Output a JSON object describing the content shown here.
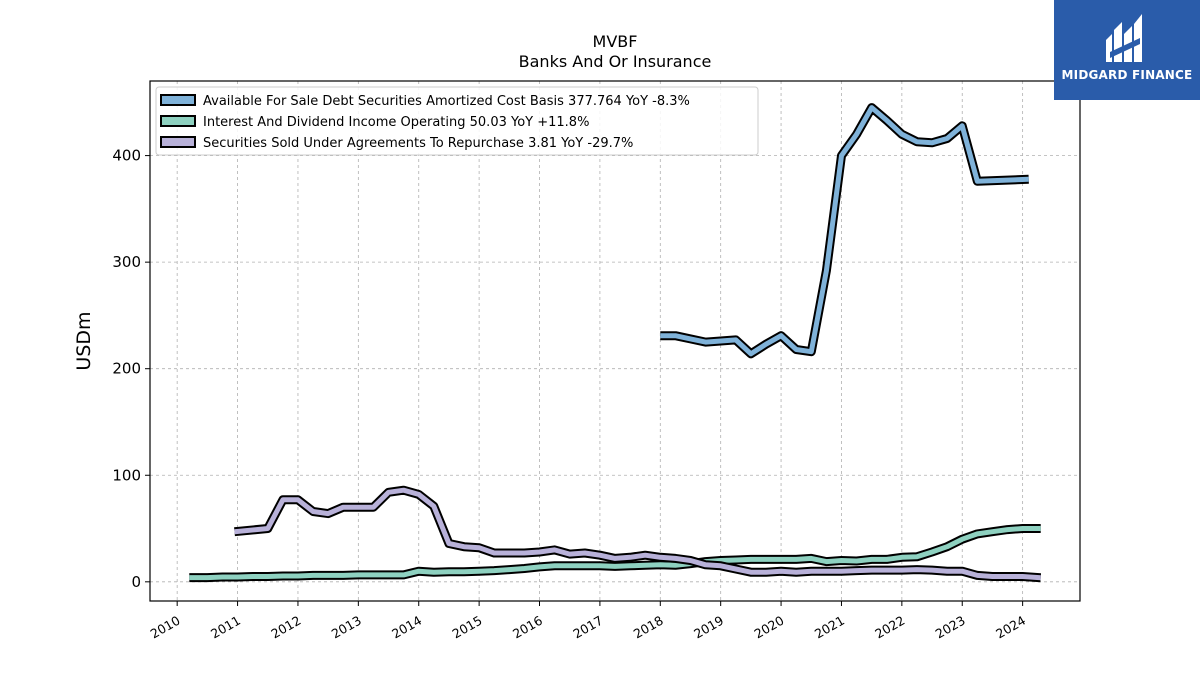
{
  "brand": {
    "name": "MIDGARD FINANCE",
    "color": "#2a5caa"
  },
  "chart_data": {
    "type": "line",
    "title": "MVBF",
    "subtitle": "Banks And Or Insurance",
    "ylabel": "USDm",
    "xlabel": "",
    "ylim": [
      -18,
      470
    ],
    "xlim": [
      2009.55,
      2024.95
    ],
    "yticks": [
      0,
      100,
      200,
      300,
      400
    ],
    "xticks": [
      2010,
      2011,
      2012,
      2013,
      2014,
      2015,
      2016,
      2017,
      2018,
      2019,
      2020,
      2021,
      2022,
      2023,
      2024
    ],
    "grid": true,
    "legend_position": "top-left",
    "series": [
      {
        "name": "Available For Sale Debt Securities Amortized Cost Basis  377.764 YoY -8.3%",
        "color": "#7fb2d9",
        "x": [
          2018.0,
          2018.25,
          2018.5,
          2018.75,
          2019.0,
          2019.25,
          2019.5,
          2019.75,
          2020.0,
          2020.25,
          2020.5,
          2020.75,
          2021.0,
          2021.25,
          2021.5,
          2021.75,
          2022.0,
          2022.25,
          2022.5,
          2022.75,
          2023.0,
          2023.25,
          2024.1
        ],
        "values": [
          231,
          231,
          228,
          225,
          226,
          227,
          214,
          223,
          231,
          218,
          216,
          292,
          400,
          420,
          445,
          433,
          420,
          413,
          412,
          416,
          428,
          376,
          377.764
        ]
      },
      {
        "name": "Interest And Dividend Income Operating  50.03 YoY +11.8%",
        "color": "#8ed1c0",
        "x": [
          2010.2,
          2010.5,
          2010.75,
          2011.0,
          2011.25,
          2011.5,
          2011.75,
          2012.0,
          2012.25,
          2012.5,
          2012.75,
          2013.0,
          2013.25,
          2013.5,
          2013.75,
          2014.0,
          2014.25,
          2014.5,
          2014.75,
          2015.0,
          2015.25,
          2015.5,
          2015.75,
          2016.0,
          2016.25,
          2016.5,
          2016.75,
          2017.0,
          2017.25,
          2017.5,
          2017.75,
          2018.0,
          2018.25,
          2018.5,
          2018.75,
          2019.0,
          2019.25,
          2019.5,
          2019.75,
          2020.0,
          2020.25,
          2020.5,
          2020.75,
          2021.0,
          2021.25,
          2021.5,
          2021.75,
          2022.0,
          2022.25,
          2022.5,
          2022.75,
          2023.0,
          2023.25,
          2023.5,
          2023.75,
          2024.0,
          2024.3
        ],
        "values": [
          4,
          4,
          4.5,
          4.5,
          5,
          5,
          5.5,
          5.5,
          6,
          6,
          6,
          6.5,
          6.5,
          6.5,
          6.5,
          10,
          9,
          9.5,
          9.5,
          10,
          10.5,
          11.5,
          12.5,
          14,
          15,
          15,
          15,
          15,
          14.5,
          15,
          15.5,
          16,
          15.5,
          17,
          19,
          20,
          20.5,
          21,
          21,
          21,
          21,
          22,
          19,
          20,
          19.5,
          21,
          21,
          23,
          23.5,
          28,
          33,
          40,
          45,
          47,
          49,
          50,
          50.03
        ]
      },
      {
        "name": "Securities Sold Under Agreements To Repurchase  3.81 YoY -29.7%",
        "color": "#b8b1d9",
        "x": [
          2010.95,
          2011.5,
          2011.75,
          2012.0,
          2012.25,
          2012.5,
          2012.75,
          2013.0,
          2013.25,
          2013.5,
          2013.75,
          2014.0,
          2014.25,
          2014.5,
          2014.75,
          2015.0,
          2015.25,
          2015.5,
          2015.75,
          2016.0,
          2016.25,
          2016.5,
          2016.75,
          2017.0,
          2017.25,
          2017.5,
          2017.75,
          2018.0,
          2018.25,
          2018.5,
          2018.75,
          2019.0,
          2019.25,
          2019.5,
          2019.75,
          2020.0,
          2020.25,
          2020.5,
          2020.75,
          2021.0,
          2021.25,
          2021.5,
          2021.75,
          2022.0,
          2022.25,
          2022.5,
          2022.75,
          2023.0,
          2023.25,
          2023.5,
          2023.75,
          2024.0,
          2024.3
        ],
        "values": [
          47,
          50,
          77,
          77,
          66,
          64,
          70,
          70,
          70,
          84,
          86,
          82,
          71,
          36,
          33,
          32,
          27,
          27,
          27,
          28,
          30,
          26,
          27,
          25,
          22,
          23,
          25,
          23,
          22,
          20,
          16,
          15,
          12,
          9,
          9,
          10,
          9,
          10,
          10,
          10,
          10.5,
          11,
          11,
          11,
          11.5,
          11,
          10,
          10,
          6,
          5,
          5,
          5,
          3.81
        ]
      }
    ]
  }
}
